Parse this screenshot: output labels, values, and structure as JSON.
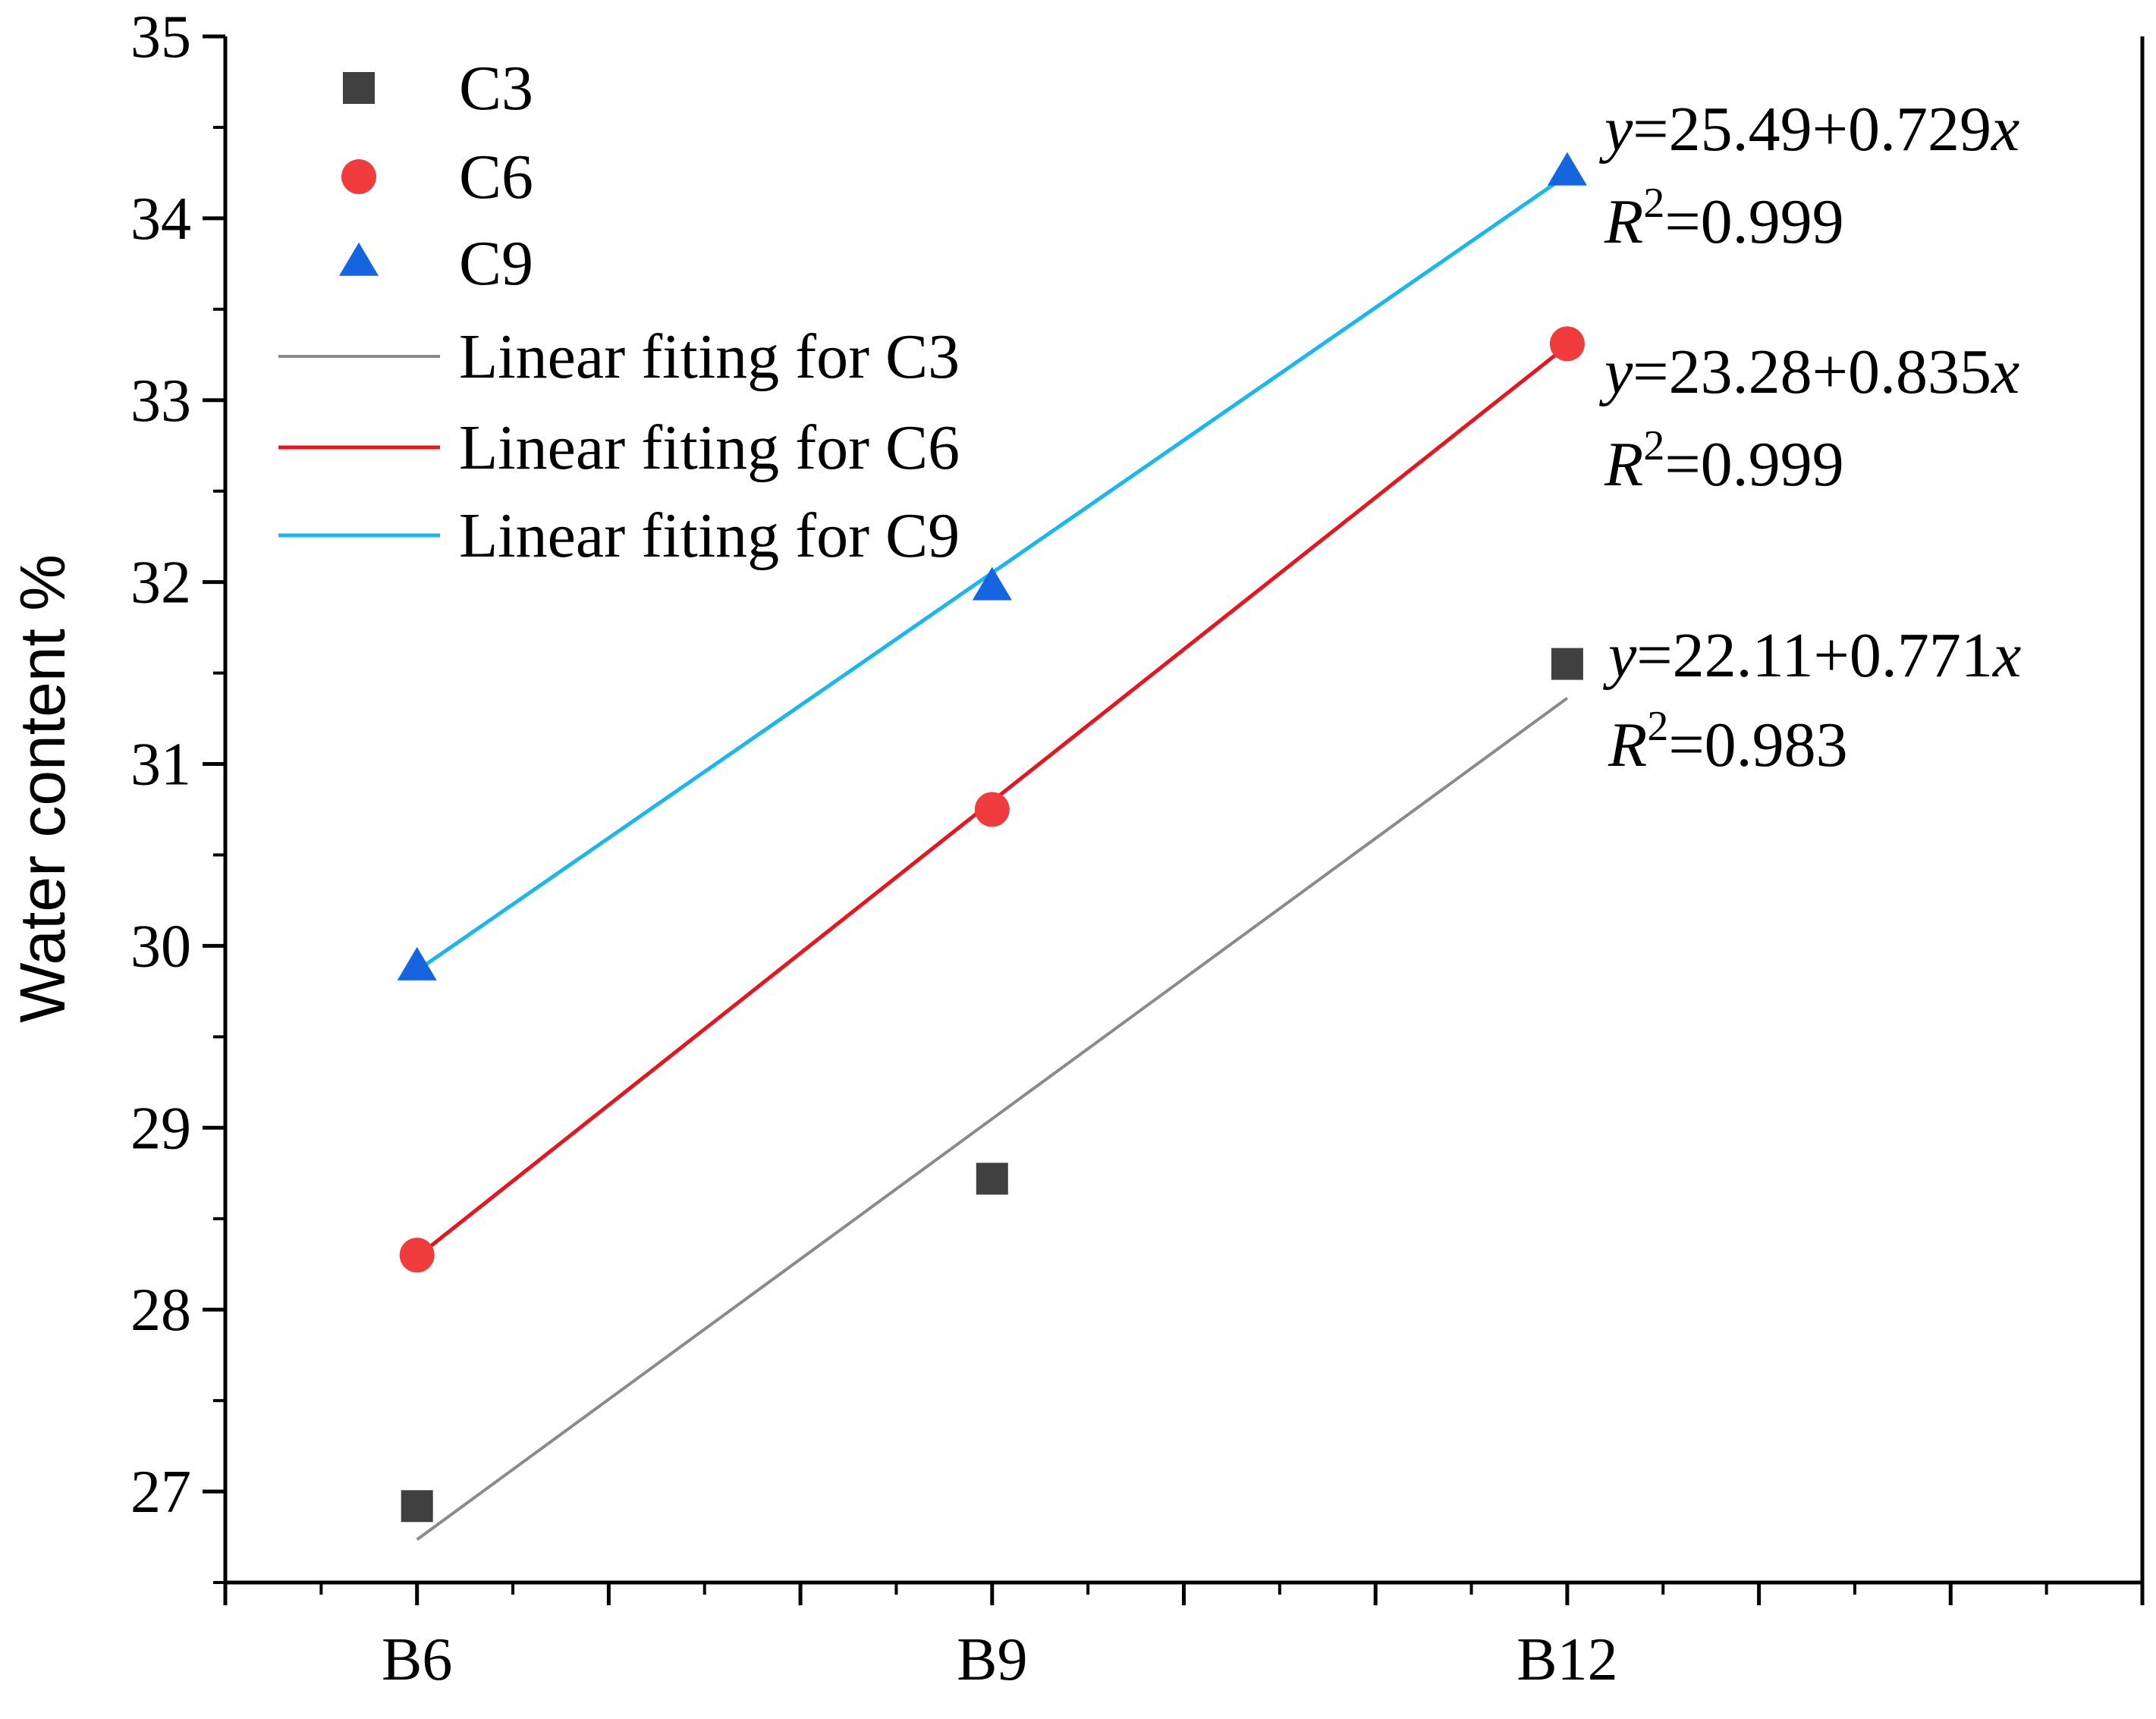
{
  "chart_data": {
    "type": "scatter",
    "title": "",
    "xlabel": "",
    "ylabel": "Water content %",
    "categories": [
      "B6",
      "B9",
      "B12"
    ],
    "x_numeric": [
      6,
      9,
      12
    ],
    "xlim": [
      5,
      15
    ],
    "ylim": [
      26.5,
      35
    ],
    "y_ticks": [
      27,
      28,
      29,
      30,
      31,
      32,
      33,
      34,
      35
    ],
    "y_tick_labels": [
      "27",
      "28",
      "29",
      "30",
      "31",
      "32",
      "33",
      "34",
      "35"
    ],
    "series": [
      {
        "name": "C3",
        "marker": "square",
        "color": "#404040",
        "values": [
          26.92,
          28.72,
          31.55
        ]
      },
      {
        "name": "C6",
        "marker": "circle",
        "color": "#f03c3c",
        "values": [
          28.3,
          30.75,
          33.31
        ]
      },
      {
        "name": "C9",
        "marker": "triangle",
        "color": "#1565e0",
        "values": [
          29.88,
          31.97,
          34.25
        ]
      }
    ],
    "fits": [
      {
        "name": "Linear fiting for C3",
        "color": "#8a8a8a",
        "intercept": 22.11,
        "slope": 0.771,
        "x_range": [
          6,
          12
        ],
        "eq_y": "y",
        "eq_body": "=22.11+0.771",
        "eq_x": "x",
        "r2_r": "R",
        "r2_sup": "2",
        "r2_body": "=0.983"
      },
      {
        "name": "Linear fiting for C6",
        "color": "#e8141e",
        "intercept": 23.28,
        "slope": 0.835,
        "x_range": [
          6,
          12
        ],
        "eq_y": "y",
        "eq_body": "=23.28+0.835",
        "eq_x": "x",
        "r2_r": "R",
        "r2_sup": "2",
        "r2_body": "=0.999"
      },
      {
        "name": "Linear fiting for C9",
        "color": "#18b8ef",
        "intercept": 25.49,
        "slope": 0.729,
        "x_range": [
          6,
          12
        ],
        "eq_y": "y",
        "eq_body": "=25.49+0.729",
        "eq_x": "x",
        "r2_r": "R",
        "r2_sup": "2",
        "r2_body": "=0.999"
      }
    ],
    "legend_position": "top-left"
  }
}
